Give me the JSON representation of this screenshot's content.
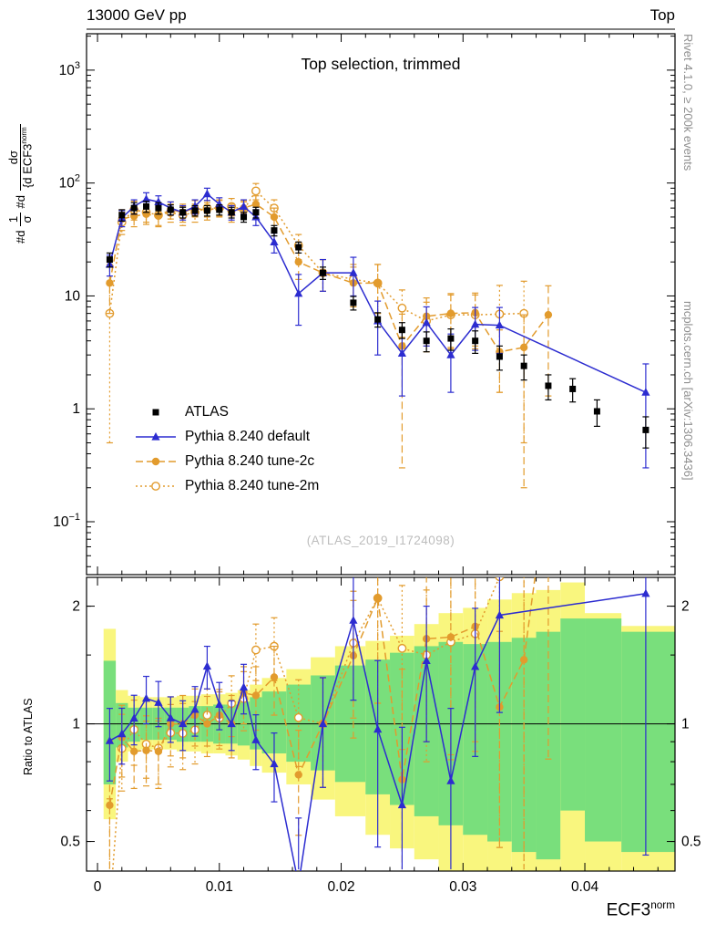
{
  "header": {
    "left": "13000 GeV pp",
    "right": "Top"
  },
  "panel_title": "Top selection, trimmed",
  "watermark": "(ATLAS_2019_I1724098)",
  "right_margin": {
    "top": "Rivet 4.1.0, ≥ 200k events",
    "bottom": "mcplots.cern.ch [arXiv:1306.3436]"
  },
  "ylabel": {
    "t1": "#d",
    "n1": "1",
    "d1": "σ",
    "t2": "#d",
    "n2": "dσ",
    "d2": "{d ECF3",
    "d2sup": "norm"
  },
  "ratio_ylabel": "Ratio to ATLAS",
  "xlabel": {
    "base": "ECF3",
    "sup": "norm"
  },
  "colors": {
    "atlas": "#000000",
    "pythia_default": "#2c2cd0",
    "pythia_tune": "#e29b2d",
    "band_yellow": "#f9f67e",
    "band_green": "#79df7c",
    "gray_text": "#8f8f8f",
    "watermark": "#bdbdbd"
  },
  "chart_data": {
    "type": "line",
    "title": "Top selection, trimmed",
    "xlabel": "ECF3^norm",
    "ylabel": "1/σ dσ/d ECF3^norm",
    "yscale": "log",
    "xlim": [
      -0.0009,
      0.0474
    ],
    "ylim_main": [
      0.034,
      2100
    ],
    "x": [
      0.001,
      0.002,
      0.003,
      0.004,
      0.005,
      0.006,
      0.007,
      0.008,
      0.009,
      0.01,
      0.011,
      0.012,
      0.013,
      0.0145,
      0.0165,
      0.0185,
      0.021,
      0.023,
      0.025,
      0.027,
      0.029,
      0.031,
      0.033,
      0.035,
      0.037,
      0.039,
      0.041,
      0.045
    ],
    "series": [
      {
        "key": "atlas",
        "name": "ATLAS",
        "marker": "square",
        "color": "#000000",
        "line": null,
        "values": [
          21,
          52,
          60,
          62,
          60,
          58,
          55,
          57,
          57,
          58,
          55,
          50,
          55,
          38,
          27,
          16,
          8.7,
          6.2,
          5,
          4,
          4.2,
          4,
          2.9,
          2.4,
          1.6,
          1.5,
          0.95,
          0.65
        ],
        "yerr": [
          3,
          6,
          7,
          7,
          7,
          6,
          6,
          6,
          6,
          6,
          6,
          5,
          6,
          4,
          3,
          2,
          1.2,
          0.9,
          0.8,
          0.8,
          0.9,
          0.9,
          0.7,
          0.6,
          0.4,
          0.35,
          0.25,
          0.2
        ]
      },
      {
        "key": "pythia-default",
        "name": "Pythia 8.240 default",
        "marker": "triangle",
        "color": "#2c2cd0",
        "line": "solid",
        "values": [
          19,
          49,
          62,
          72,
          68,
          60,
          55,
          62,
          80,
          65,
          55,
          62,
          50,
          30,
          10.5,
          16,
          16,
          6,
          3.1,
          5.8,
          3,
          5.6,
          5.5,
          null,
          null,
          null,
          null,
          1.4
        ],
        "yerr": [
          4,
          8,
          9,
          10,
          9,
          8,
          8,
          9,
          10,
          9,
          8,
          9,
          8,
          6,
          5,
          5,
          6,
          3,
          1.8,
          2.2,
          1.6,
          2.3,
          2.4,
          null,
          null,
          null,
          null,
          1.1
        ]
      },
      {
        "key": "pythia-tune-2c",
        "name": "Pythia 8.240 tune-2c",
        "marker": "circle",
        "color": "#e29b2d",
        "line": "dashed",
        "values": [
          13,
          48,
          51,
          53,
          51,
          58,
          55,
          60,
          57,
          61,
          55,
          60,
          65,
          50,
          20,
          16,
          13,
          13,
          3.6,
          6.6,
          7,
          7.1,
          3.2,
          3.5,
          6.8,
          null,
          null,
          null
        ],
        "yerr": [
          6,
          10,
          10,
          10,
          10,
          10,
          10,
          10,
          10,
          10,
          10,
          10,
          12,
          10,
          6,
          5,
          5,
          6,
          3.3,
          3,
          3.5,
          3.5,
          1.8,
          3.3,
          5.5,
          null,
          null,
          null
        ]
      },
      {
        "key": "pythia-tune-2m",
        "name": "Pythia 8.240 tune-2m",
        "marker": "circle-open",
        "color": "#e29b2d",
        "line": "dotted",
        "values": [
          7,
          45,
          58,
          55,
          52,
          55,
          52,
          55,
          60,
          60,
          62,
          58,
          85,
          60,
          28,
          16,
          14,
          13,
          7.8,
          6,
          6.8,
          6.8,
          6.9,
          7,
          null,
          null,
          null,
          null
        ],
        "yerr": [
          6.5,
          10,
          11,
          10,
          10,
          10,
          10,
          10,
          10,
          10,
          11,
          10,
          14,
          11,
          7,
          5,
          5,
          6,
          3.5,
          2.8,
          3.4,
          3.4,
          5.5,
          6.5,
          null,
          null,
          null,
          null
        ]
      }
    ],
    "ratio": {
      "ylabel": "Ratio to ATLAS",
      "yscale": "log",
      "ylim": [
        0.42,
        2.37
      ],
      "reference": "ATLAS"
    },
    "ratio_bands": {
      "x_edges": [
        0.0005,
        0.0015,
        0.0025,
        0.0035,
        0.0045,
        0.0055,
        0.0065,
        0.0075,
        0.0085,
        0.0095,
        0.0105,
        0.0115,
        0.0125,
        0.0135,
        0.0155,
        0.0175,
        0.0195,
        0.022,
        0.024,
        0.026,
        0.028,
        0.03,
        0.032,
        0.034,
        0.036,
        0.038,
        0.04,
        0.043,
        0.0474
      ],
      "yellow_lo": [
        0.57,
        0.8,
        0.85,
        0.86,
        0.86,
        0.86,
        0.85,
        0.85,
        0.84,
        0.84,
        0.83,
        0.81,
        0.78,
        0.75,
        0.7,
        0.64,
        0.58,
        0.52,
        0.48,
        0.45,
        0.42,
        0.4,
        0.4,
        0.4,
        0.4,
        0.4,
        0.4,
        0.4
      ],
      "yellow_hi": [
        1.75,
        1.22,
        1.18,
        1.17,
        1.17,
        1.17,
        1.18,
        1.18,
        1.19,
        1.19,
        1.2,
        1.22,
        1.26,
        1.31,
        1.38,
        1.48,
        1.58,
        1.63,
        1.68,
        1.8,
        1.92,
        1.98,
        2.08,
        2.16,
        2.2,
        2.3,
        1.92,
        1.78
      ],
      "green_lo": [
        0.7,
        0.87,
        0.9,
        0.91,
        0.91,
        0.91,
        0.9,
        0.9,
        0.9,
        0.89,
        0.89,
        0.88,
        0.86,
        0.84,
        0.8,
        0.76,
        0.71,
        0.66,
        0.62,
        0.58,
        0.55,
        0.52,
        0.5,
        0.47,
        0.45,
        0.6,
        0.5,
        0.47
      ],
      "green_hi": [
        1.45,
        1.13,
        1.1,
        1.1,
        1.1,
        1.1,
        1.1,
        1.11,
        1.11,
        1.12,
        1.12,
        1.14,
        1.17,
        1.21,
        1.26,
        1.33,
        1.41,
        1.46,
        1.52,
        1.58,
        1.62,
        1.6,
        1.62,
        1.66,
        1.72,
        1.86,
        1.86,
        1.72
      ]
    },
    "axes": {
      "x_ticks": [
        {
          "v": 0,
          "label": "0"
        },
        {
          "v": 0.01,
          "label": "0.01"
        },
        {
          "v": 0.02,
          "label": "0.02"
        },
        {
          "v": 0.03,
          "label": "0.03"
        },
        {
          "v": 0.04,
          "label": "0.04"
        }
      ],
      "x_minor_step": 0.002,
      "y_ticks_main": [
        {
          "v": 1000,
          "base": "10",
          "sup": "3"
        },
        {
          "v": 100,
          "base": "10",
          "sup": "2"
        },
        {
          "v": 10,
          "base": "10",
          "sup": ""
        },
        {
          "v": 1,
          "base": "1",
          "sup": ""
        },
        {
          "v": 0.1,
          "base": "10",
          "sup": "−1"
        }
      ],
      "ratio_ticks": [
        {
          "v": 2,
          "label": "2"
        },
        {
          "v": 1,
          "label": "1"
        },
        {
          "v": 0.5,
          "label": "0.5"
        }
      ],
      "ratio_minor": [
        0.5,
        0.6,
        0.7,
        0.8,
        0.9,
        1.5,
        2
      ]
    }
  }
}
